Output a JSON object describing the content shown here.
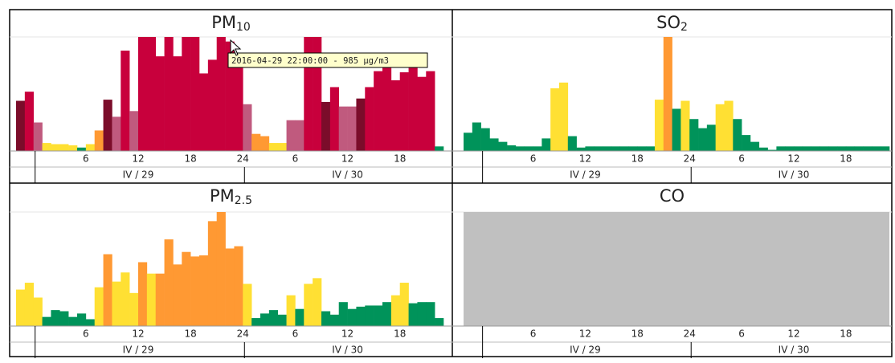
{
  "chart_data": [
    {
      "type": "bar",
      "title": "PM",
      "title_sub": "10",
      "ylim": [
        0,
        100
      ],
      "xlim": [
        -2,
        47
      ],
      "xticks": [
        6,
        12,
        18,
        24,
        {
          "value": 30,
          "label": "6"
        },
        {
          "value": 36,
          "label": "12"
        },
        {
          "value": 42,
          "label": "18"
        }
      ],
      "day_labels": [
        {
          "value": 12,
          "label": "IV / 29"
        },
        {
          "value": 36,
          "label": "IV / 30"
        }
      ],
      "tooltip": "2016-04-29 22:00:00 - 985 µg/m3",
      "values": [
        44,
        52,
        25,
        7,
        6,
        6,
        5,
        3,
        6,
        18,
        45,
        30,
        88,
        35,
        100,
        100,
        83,
        100,
        83,
        100,
        100,
        68,
        80,
        100,
        96,
        77,
        41,
        15,
        13,
        7,
        7,
        27,
        27,
        100,
        100,
        43,
        56,
        39,
        39,
        46,
        56,
        70,
        85,
        62,
        69,
        80,
        65,
        70,
        4
      ],
      "colors": [
        "#7b0c2a",
        "#c8003c",
        "#c05a7e",
        "#ffe033",
        "#ffe033",
        "#ffe033",
        "#ffe033",
        "#00935a",
        "#ffe033",
        "#ff9933",
        "#7b0c2a",
        "#c05a7e",
        "#c8003c",
        "#c05a7e",
        "#c8003c",
        "#c8003c",
        "#c8003c",
        "#c8003c",
        "#c8003c",
        "#c8003c",
        "#c8003c",
        "#c8003c",
        "#c8003c",
        "#c8003c",
        "#c8003c",
        "#c8003c",
        "#c05a7e",
        "#ff9933",
        "#ff9933",
        "#ffe033",
        "#ffe033",
        "#c05a7e",
        "#c05a7e",
        "#c8003c",
        "#c8003c",
        "#7b0c2a",
        "#c8003c",
        "#c05a7e",
        "#c05a7e",
        "#7b0c2a",
        "#c8003c",
        "#c8003c",
        "#c8003c",
        "#c8003c",
        "#c8003c",
        "#c8003c",
        "#c8003c",
        "#c8003c",
        "#00935a"
      ]
    },
    {
      "type": "bar",
      "title": "SO",
      "title_sub": "2",
      "ylim": [
        0,
        100
      ],
      "xlim": [
        -2,
        47
      ],
      "xticks": [
        6,
        12,
        18,
        24,
        {
          "value": 30,
          "label": "6"
        },
        {
          "value": 36,
          "label": "12"
        },
        {
          "value": 42,
          "label": "18"
        }
      ],
      "day_labels": [
        {
          "value": 12,
          "label": "IV / 29"
        },
        {
          "value": 36,
          "label": "IV / 30"
        }
      ],
      "values": [
        16,
        25,
        20,
        11,
        8,
        5,
        4,
        4,
        4,
        11,
        55,
        60,
        13,
        3,
        4,
        4,
        4,
        4,
        4,
        4,
        4,
        4,
        45,
        100,
        37,
        44,
        28,
        20,
        23,
        41,
        44,
        28,
        14,
        8,
        3,
        1,
        4,
        4,
        4,
        4,
        4,
        4,
        4,
        4,
        4,
        4,
        4,
        4,
        4
      ],
      "colors": [
        "#00935a",
        "#00935a",
        "#00935a",
        "#00935a",
        "#00935a",
        "#00935a",
        "#00935a",
        "#00935a",
        "#00935a",
        "#00935a",
        "#ffe033",
        "#ffe033",
        "#00935a",
        "#00935a",
        "#00935a",
        "#00935a",
        "#00935a",
        "#00935a",
        "#00935a",
        "#00935a",
        "#00935a",
        "#00935a",
        "#ffe033",
        "#ff9933",
        "#00935a",
        "#ffe033",
        "#00935a",
        "#00935a",
        "#00935a",
        "#ffe033",
        "#ffe033",
        "#00935a",
        "#00935a",
        "#00935a",
        "#00935a",
        "#00935a",
        "#00935a",
        "#00935a",
        "#00935a",
        "#00935a",
        "#00935a",
        "#00935a",
        "#00935a",
        "#00935a",
        "#00935a",
        "#00935a",
        "#00935a",
        "#00935a",
        "#00935a"
      ]
    },
    {
      "type": "bar",
      "title": "PM",
      "title_sub": "2.5",
      "ylim": [
        0,
        100
      ],
      "xlim": [
        -2,
        47
      ],
      "xticks": [
        6,
        12,
        18,
        24,
        {
          "value": 30,
          "label": "6"
        },
        {
          "value": 36,
          "label": "12"
        },
        {
          "value": 42,
          "label": "18"
        }
      ],
      "day_labels": [
        {
          "value": 12,
          "label": "IV / 29"
        },
        {
          "value": 36,
          "label": "IV / 30"
        }
      ],
      "values": [
        32,
        38,
        25,
        8,
        14,
        13,
        8,
        11,
        6,
        34,
        63,
        39,
        47,
        29,
        56,
        46,
        46,
        76,
        54,
        65,
        61,
        62,
        92,
        100,
        68,
        70,
        37,
        7,
        11,
        14,
        10,
        27,
        15,
        37,
        42,
        13,
        10,
        21,
        15,
        17,
        18,
        18,
        21,
        27,
        38,
        20,
        21,
        21,
        7
      ],
      "colors": [
        "#ffe033",
        "#ffe033",
        "#ffe033",
        "#00935a",
        "#00935a",
        "#00935a",
        "#00935a",
        "#00935a",
        "#00935a",
        "#ffe033",
        "#ff9933",
        "#ffe033",
        "#ffe033",
        "#ffe033",
        "#ff9933",
        "#ffe033",
        "#ff9933",
        "#ff9933",
        "#ff9933",
        "#ff9933",
        "#ff9933",
        "#ff9933",
        "#ff9933",
        "#ff9933",
        "#ff9933",
        "#ff9933",
        "#ffe033",
        "#00935a",
        "#00935a",
        "#00935a",
        "#00935a",
        "#ffe033",
        "#00935a",
        "#ffe033",
        "#ffe033",
        "#00935a",
        "#00935a",
        "#00935a",
        "#00935a",
        "#00935a",
        "#00935a",
        "#00935a",
        "#00935a",
        "#ffe033",
        "#ffe033",
        "#00935a",
        "#00935a",
        "#00935a",
        "#00935a"
      ]
    },
    {
      "type": "empty",
      "title": "CO",
      "background": "#c0c0c0",
      "xlim": [
        -2,
        47
      ],
      "xticks": [
        6,
        12,
        18,
        24,
        {
          "value": 30,
          "label": "6"
        },
        {
          "value": 36,
          "label": "12"
        },
        {
          "value": 42,
          "label": "18"
        }
      ],
      "day_labels": [
        {
          "value": 12,
          "label": "IV / 29"
        },
        {
          "value": 36,
          "label": "IV / 30"
        }
      ]
    }
  ]
}
